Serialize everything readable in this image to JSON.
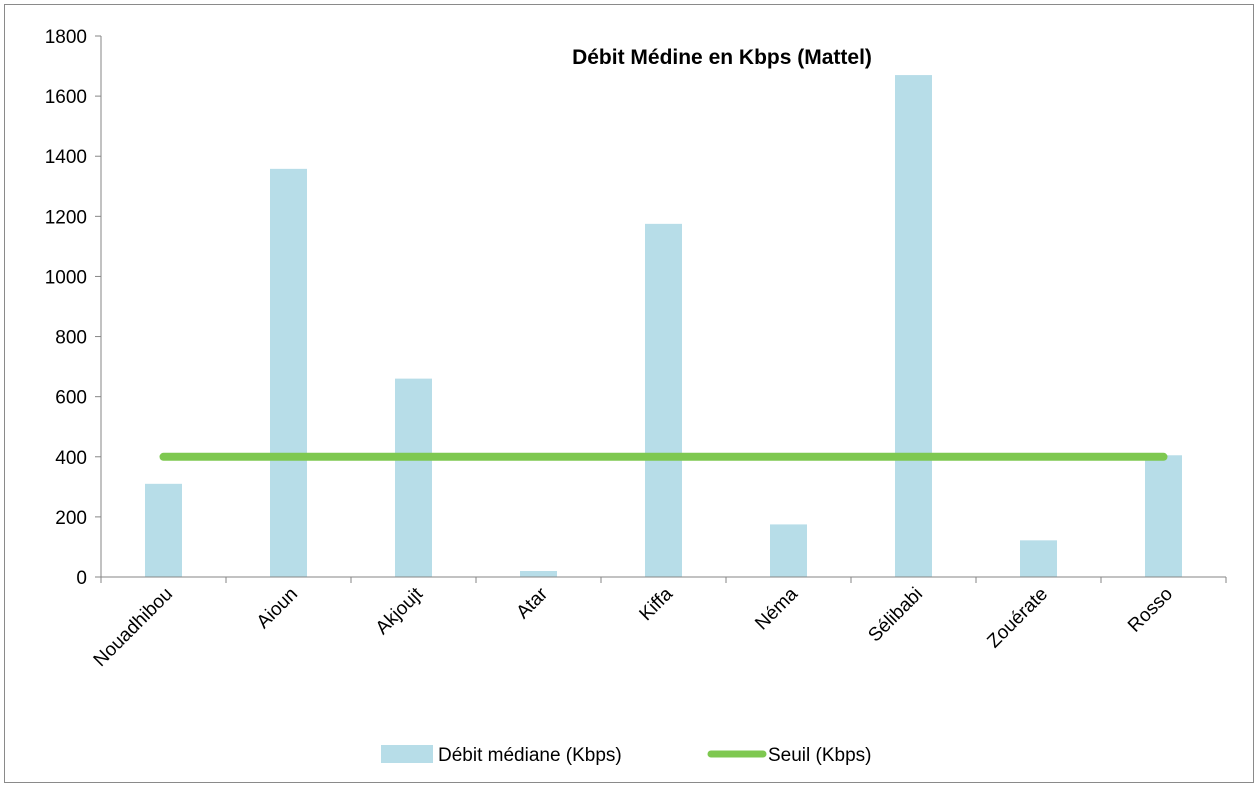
{
  "chart_data": {
    "type": "bar",
    "title": "Débit Médine en Kbps (Mattel)",
    "categories": [
      "Nouadhibou",
      "Aioun",
      "Akjoujt",
      "Atar",
      "Kiffa",
      "Néma",
      "Sélibabi",
      "Zouérate",
      "Rosso"
    ],
    "series": [
      {
        "name": "Débit médiane (Kbps)",
        "type": "bar",
        "color": "#b7dde8",
        "values": [
          310,
          1358,
          660,
          20,
          1175,
          175,
          1670,
          122,
          405
        ]
      },
      {
        "name": "Seuil (Kbps)",
        "type": "line",
        "color": "#7ec850",
        "values": [
          400,
          400,
          400,
          400,
          400,
          400,
          400,
          400,
          400
        ]
      }
    ],
    "ylim": [
      0,
      1800
    ],
    "yticks": [
      0,
      200,
      400,
      600,
      800,
      1000,
      1200,
      1400,
      1600,
      1800
    ],
    "grid": false,
    "legend": "bottom",
    "xlabel": "",
    "ylabel": ""
  }
}
